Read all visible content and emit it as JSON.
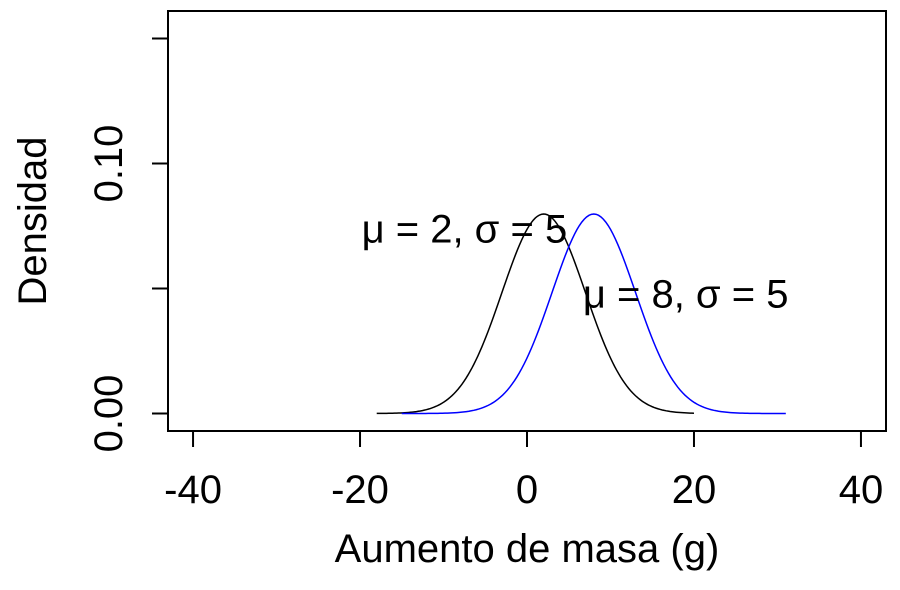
{
  "chart_data": {
    "type": "line",
    "title": "",
    "xlabel": "Aumento de masa (g)",
    "ylabel": "Densidad",
    "xlim": [
      -43,
      43
    ],
    "ylim": [
      -0.007,
      0.161
    ],
    "x_ticks": [
      -40,
      -20,
      0,
      20,
      40
    ],
    "x_tick_labels": [
      "-40",
      "-20",
      "0",
      "20",
      "40"
    ],
    "y_ticks": [
      0.0,
      0.05,
      0.1,
      0.15
    ],
    "y_tick_labels": [
      "0.00",
      "",
      "0.10",
      ""
    ],
    "grid": false,
    "series": [
      {
        "mu": 2,
        "sigma": 5,
        "x_range": [
          -18,
          20
        ],
        "color": "#000000"
      },
      {
        "mu": 8,
        "sigma": 5,
        "x_range": [
          -15,
          31
        ],
        "color": "#0000ff"
      }
    ],
    "annotations": [
      {
        "text": "μ = 2, σ = 5",
        "x": -7.5,
        "y": 0.074
      },
      {
        "text": "μ = 8, σ = 5",
        "x": 19,
        "y": 0.048
      }
    ]
  }
}
